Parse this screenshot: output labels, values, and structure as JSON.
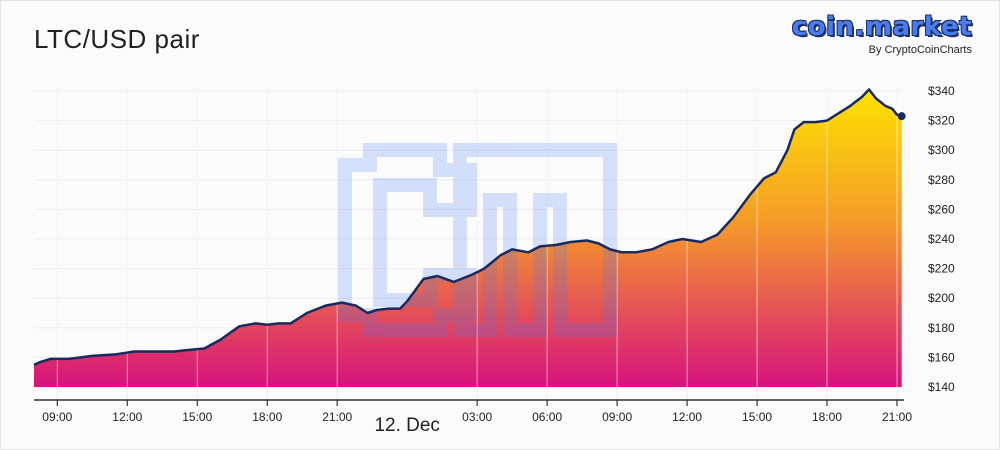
{
  "header": {
    "title": "LTC/USD pair",
    "logo_text": "coin.market",
    "logo_sub": "By CryptoCoinCharts"
  },
  "colors": {
    "line": "#1b2a5e",
    "gradient_top": "#fde300",
    "gradient_mid": "#f59a2a",
    "gradient_bottom": "#d6127e",
    "watermark": "#4a7cf0"
  },
  "chart_data": {
    "type": "area",
    "title": "LTC/USD pair",
    "xlabel": "",
    "ylabel": "",
    "x_range": [
      8,
      45.3
    ],
    "ylim": [
      140,
      350
    ],
    "date_label": "12. Dec",
    "x_ticks": [
      {
        "x": 9,
        "label": "09:00"
      },
      {
        "x": 12,
        "label": "12:00"
      },
      {
        "x": 15,
        "label": "15:00"
      },
      {
        "x": 18,
        "label": "18:00"
      },
      {
        "x": 21,
        "label": "21:00"
      },
      {
        "x": 27,
        "label": "03:00"
      },
      {
        "x": 30,
        "label": "06:00"
      },
      {
        "x": 33,
        "label": "09:00"
      },
      {
        "x": 36,
        "label": "12:00"
      },
      {
        "x": 39,
        "label": "15:00"
      },
      {
        "x": 42,
        "label": "18:00"
      },
      {
        "x": 45,
        "label": "21:00"
      }
    ],
    "y_ticks": [
      {
        "value": 140,
        "label": "$140"
      },
      {
        "value": 160,
        "label": "$160"
      },
      {
        "value": 180,
        "label": "$180"
      },
      {
        "value": 200,
        "label": "$200"
      },
      {
        "value": 220,
        "label": "$220"
      },
      {
        "value": 240,
        "label": "$240"
      },
      {
        "value": 260,
        "label": "$260"
      },
      {
        "value": 280,
        "label": "$280"
      },
      {
        "value": 300,
        "label": "$300"
      },
      {
        "value": 320,
        "label": "$320"
      },
      {
        "value": 340,
        "label": "$340"
      }
    ],
    "grid": true,
    "series": [
      {
        "points": [
          [
            8.0,
            155
          ],
          [
            8.3,
            157
          ],
          [
            8.7,
            159
          ],
          [
            9.5,
            159
          ],
          [
            10.5,
            161
          ],
          [
            11.5,
            162
          ],
          [
            12.3,
            164
          ],
          [
            13.0,
            164
          ],
          [
            14.0,
            164
          ],
          [
            14.6,
            165
          ],
          [
            15.3,
            166
          ],
          [
            16.0,
            172
          ],
          [
            16.8,
            181
          ],
          [
            17.5,
            183
          ],
          [
            18.0,
            182
          ],
          [
            18.5,
            183
          ],
          [
            19.0,
            183
          ],
          [
            19.7,
            190
          ],
          [
            20.5,
            195
          ],
          [
            21.2,
            197
          ],
          [
            21.8,
            195
          ],
          [
            22.3,
            190
          ],
          [
            22.7,
            192
          ],
          [
            23.2,
            193
          ],
          [
            23.7,
            193
          ],
          [
            24.0,
            198
          ],
          [
            24.7,
            213
          ],
          [
            25.3,
            215
          ],
          [
            26.0,
            211
          ],
          [
            26.8,
            216
          ],
          [
            27.3,
            220
          ],
          [
            28.0,
            229
          ],
          [
            28.5,
            233
          ],
          [
            29.2,
            231
          ],
          [
            29.7,
            235
          ],
          [
            30.4,
            236
          ],
          [
            31.0,
            238
          ],
          [
            31.7,
            239
          ],
          [
            32.2,
            237
          ],
          [
            32.7,
            233
          ],
          [
            33.2,
            231
          ],
          [
            33.8,
            231
          ],
          [
            34.5,
            233
          ],
          [
            35.2,
            238
          ],
          [
            35.8,
            240
          ],
          [
            36.2,
            239
          ],
          [
            36.6,
            238
          ],
          [
            37.3,
            243
          ],
          [
            38.0,
            255
          ],
          [
            38.7,
            270
          ],
          [
            39.3,
            281
          ],
          [
            39.8,
            285
          ],
          [
            40.3,
            300
          ],
          [
            40.6,
            314
          ],
          [
            41.0,
            319
          ],
          [
            41.5,
            319
          ],
          [
            42.0,
            320
          ],
          [
            42.5,
            325
          ],
          [
            43.0,
            330
          ],
          [
            43.5,
            336
          ],
          [
            43.8,
            341
          ],
          [
            44.1,
            335
          ],
          [
            44.5,
            330
          ],
          [
            44.8,
            328
          ],
          [
            45.0,
            324
          ],
          [
            45.2,
            323
          ]
        ]
      }
    ]
  }
}
